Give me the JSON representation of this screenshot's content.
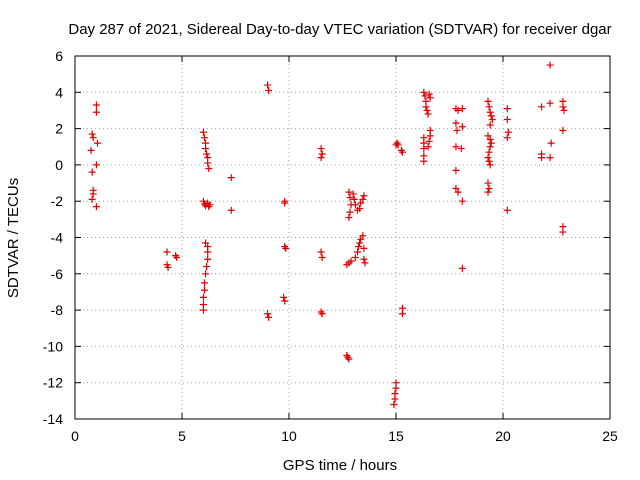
{
  "chart_data": {
    "type": "scatter",
    "title": "Day 287 of 2021, Sidereal Day-to-day VTEC variation (SDTVAR) for receiver dgar",
    "xlabel": "GPS time / hours",
    "ylabel": "SDTVAR / TECUs",
    "xlim": [
      0,
      25
    ],
    "ylim": [
      -14,
      6
    ],
    "xticks": [
      0,
      5,
      10,
      15,
      20,
      25
    ],
    "yticks": [
      -14,
      -12,
      -10,
      -8,
      -6,
      -4,
      -2,
      0,
      2,
      4,
      6
    ],
    "grid": true,
    "marker": "plus",
    "series": [
      {
        "name": "SDTVAR",
        "color": "#e00000",
        "points": [
          [
            0.8,
            1.7
          ],
          [
            0.85,
            1.5
          ],
          [
            0.75,
            0.8
          ],
          [
            0.8,
            -0.4
          ],
          [
            0.85,
            -1.4
          ],
          [
            0.85,
            -1.6
          ],
          [
            0.8,
            -1.9
          ],
          [
            1.0,
            3.3
          ],
          [
            1.0,
            2.9
          ],
          [
            1.05,
            1.2
          ],
          [
            1.0,
            0.0
          ],
          [
            1.0,
            -2.3
          ],
          [
            4.3,
            -4.8
          ],
          [
            4.3,
            -5.5
          ],
          [
            4.35,
            -5.65
          ],
          [
            4.7,
            -5.0
          ],
          [
            4.75,
            -5.1
          ],
          [
            6.0,
            1.8
          ],
          [
            6.05,
            1.5
          ],
          [
            6.1,
            1.2
          ],
          [
            6.1,
            0.9
          ],
          [
            6.15,
            0.6
          ],
          [
            6.2,
            0.4
          ],
          [
            6.2,
            0.1
          ],
          [
            6.25,
            -0.2
          ],
          [
            6.0,
            -2.0
          ],
          [
            6.05,
            -2.15
          ],
          [
            6.1,
            -2.25
          ],
          [
            6.2,
            -2.1
          ],
          [
            6.25,
            -2.3
          ],
          [
            6.3,
            -2.2
          ],
          [
            6.1,
            -4.3
          ],
          [
            6.2,
            -4.5
          ],
          [
            6.2,
            -4.8
          ],
          [
            6.2,
            -5.2
          ],
          [
            6.15,
            -5.6
          ],
          [
            6.1,
            -6.0
          ],
          [
            6.05,
            -6.5
          ],
          [
            6.05,
            -6.9
          ],
          [
            6.0,
            -7.3
          ],
          [
            6.0,
            -7.7
          ],
          [
            6.0,
            -8.0
          ],
          [
            7.3,
            -0.7
          ],
          [
            7.3,
            -2.5
          ],
          [
            9.0,
            4.4
          ],
          [
            9.05,
            4.1
          ],
          [
            9.0,
            -8.2
          ],
          [
            9.05,
            -8.4
          ],
          [
            9.8,
            -2.0
          ],
          [
            9.8,
            -2.1
          ],
          [
            9.8,
            -4.5
          ],
          [
            9.85,
            -4.6
          ],
          [
            9.75,
            -7.3
          ],
          [
            9.8,
            -7.5
          ],
          [
            11.5,
            0.9
          ],
          [
            11.55,
            0.6
          ],
          [
            11.5,
            0.4
          ],
          [
            11.5,
            -4.8
          ],
          [
            11.55,
            -5.1
          ],
          [
            11.5,
            -8.1
          ],
          [
            11.55,
            -8.2
          ],
          [
            12.7,
            -10.5
          ],
          [
            12.75,
            -10.6
          ],
          [
            12.8,
            -10.7
          ],
          [
            12.7,
            -5.5
          ],
          [
            12.8,
            -5.4
          ],
          [
            12.9,
            -5.3
          ],
          [
            12.8,
            -1.5
          ],
          [
            12.85,
            -1.8
          ],
          [
            12.9,
            -2.2
          ],
          [
            12.85,
            -2.6
          ],
          [
            12.8,
            -2.9
          ],
          [
            13.0,
            -1.6
          ],
          [
            13.05,
            -1.9
          ],
          [
            13.1,
            -2.2
          ],
          [
            13.2,
            -2.5
          ],
          [
            13.3,
            -2.4
          ],
          [
            13.35,
            -2.1
          ],
          [
            13.45,
            -1.9
          ],
          [
            13.5,
            -1.7
          ],
          [
            13.1,
            -5.1
          ],
          [
            13.2,
            -4.8
          ],
          [
            13.25,
            -4.5
          ],
          [
            13.3,
            -4.3
          ],
          [
            13.35,
            -4.1
          ],
          [
            13.45,
            -3.9
          ],
          [
            13.5,
            -4.6
          ],
          [
            13.5,
            -5.2
          ],
          [
            13.55,
            -5.4
          ],
          [
            15.0,
            1.1
          ],
          [
            15.05,
            1.2
          ],
          [
            15.1,
            1.1
          ],
          [
            15.25,
            0.8
          ],
          [
            15.3,
            0.7
          ],
          [
            15.0,
            -12.0
          ],
          [
            15.0,
            -12.3
          ],
          [
            14.95,
            -12.6
          ],
          [
            14.95,
            -12.9
          ],
          [
            14.9,
            -13.2
          ],
          [
            15.3,
            -7.9
          ],
          [
            15.3,
            -8.2
          ],
          [
            16.3,
            4.0
          ],
          [
            16.35,
            3.8
          ],
          [
            16.4,
            3.5
          ],
          [
            16.4,
            3.2
          ],
          [
            16.45,
            3.0
          ],
          [
            16.5,
            2.8
          ],
          [
            16.55,
            3.9
          ],
          [
            16.6,
            3.7
          ],
          [
            16.3,
            1.5
          ],
          [
            16.3,
            1.2
          ],
          [
            16.3,
            0.9
          ],
          [
            16.3,
            0.5
          ],
          [
            16.3,
            0.2
          ],
          [
            16.5,
            1.0
          ],
          [
            16.55,
            1.3
          ],
          [
            16.6,
            1.6
          ],
          [
            16.6,
            1.9
          ],
          [
            17.8,
            3.1
          ],
          [
            17.9,
            3.0
          ],
          [
            18.1,
            3.1
          ],
          [
            17.8,
            2.3
          ],
          [
            17.85,
            1.9
          ],
          [
            18.1,
            2.1
          ],
          [
            17.8,
            1.0
          ],
          [
            18.05,
            0.9
          ],
          [
            17.8,
            -0.3
          ],
          [
            17.8,
            -1.3
          ],
          [
            17.9,
            -1.5
          ],
          [
            18.1,
            -2.0
          ],
          [
            18.1,
            -5.7
          ],
          [
            19.3,
            3.5
          ],
          [
            19.35,
            3.2
          ],
          [
            19.4,
            2.9
          ],
          [
            19.45,
            2.7
          ],
          [
            19.5,
            2.5
          ],
          [
            19.4,
            2.2
          ],
          [
            19.3,
            1.6
          ],
          [
            19.4,
            1.4
          ],
          [
            19.45,
            1.2
          ],
          [
            19.4,
            1.0
          ],
          [
            19.35,
            0.7
          ],
          [
            19.3,
            0.4
          ],
          [
            19.35,
            0.2
          ],
          [
            19.4,
            0.0
          ],
          [
            19.3,
            -1.0
          ],
          [
            19.35,
            -1.3
          ],
          [
            19.3,
            -1.5
          ],
          [
            20.2,
            3.1
          ],
          [
            20.2,
            2.5
          ],
          [
            20.25,
            1.8
          ],
          [
            20.2,
            1.5
          ],
          [
            20.2,
            -2.5
          ],
          [
            21.8,
            3.2
          ],
          [
            21.8,
            0.6
          ],
          [
            21.8,
            0.4
          ],
          [
            22.2,
            5.5
          ],
          [
            22.2,
            3.4
          ],
          [
            22.25,
            1.2
          ],
          [
            22.2,
            0.4
          ],
          [
            22.8,
            3.5
          ],
          [
            22.8,
            3.2
          ],
          [
            22.85,
            3.0
          ],
          [
            22.8,
            1.9
          ],
          [
            22.8,
            -3.4
          ],
          [
            22.8,
            -3.7
          ]
        ]
      }
    ]
  }
}
